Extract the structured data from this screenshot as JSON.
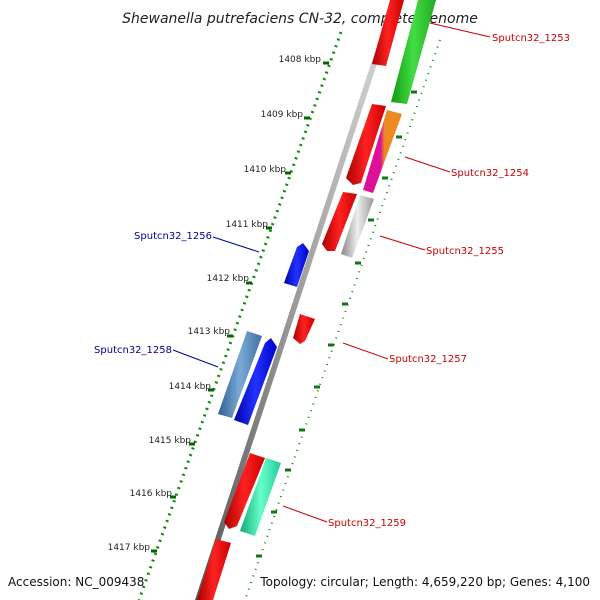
{
  "title": "Shewanella putrefaciens CN-32, complete genome",
  "footer": {
    "accession": "Accession: NC_009438",
    "summary": "Topology: circular; Length: 4,659,220 bp; Genes: 4,100"
  },
  "ticks": [
    "1408 kbp",
    "1409 kbp",
    "1410 kbp",
    "1411 kbp",
    "1412 kbp",
    "1413 kbp",
    "1414 kbp",
    "1415 kbp",
    "1416 kbp",
    "1417 kbp"
  ],
  "gene_labels": [
    {
      "id": "1253",
      "text": "Sputcn32_1253",
      "color": "#cc0000"
    },
    {
      "id": "1254",
      "text": "Sputcn32_1254",
      "color": "#cc0000"
    },
    {
      "id": "1255",
      "text": "Sputcn32_1255",
      "color": "#cc0000"
    },
    {
      "id": "1256",
      "text": "Sputcn32_1256",
      "color": "#000099"
    },
    {
      "id": "1257",
      "text": "Sputcn32_1257",
      "color": "#cc0000"
    },
    {
      "id": "1258",
      "text": "Sputcn32_1258",
      "color": "#000099"
    },
    {
      "id": "1259",
      "text": "Sputcn32_1259",
      "color": "#cc0000"
    }
  ],
  "colors": {
    "cds_red": "#ee0000",
    "cds_blue": "#0000ee",
    "green": "#22bb22",
    "steel": "#4a80b0",
    "grey": "#aaaaaa",
    "mint": "#22dd99",
    "magenta": "#dd1199",
    "orange": "#ee8822",
    "backbone": "#777777",
    "tick_green": "#007700"
  }
}
